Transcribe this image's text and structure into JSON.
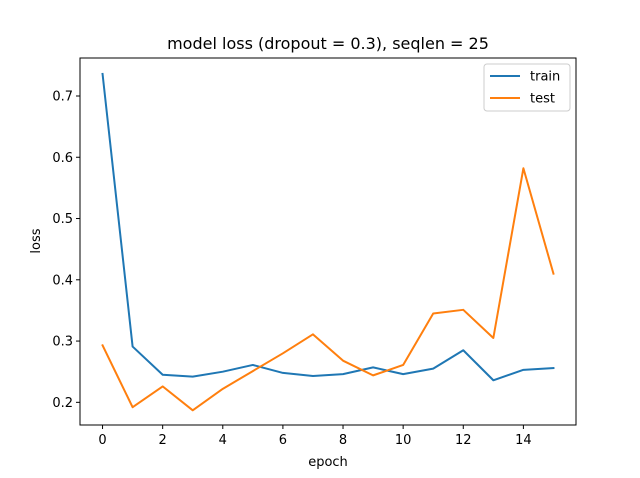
{
  "chart_data": {
    "type": "line",
    "title": "model loss (dropout = 0.3), seqlen = 25",
    "xlabel": "epoch",
    "ylabel": "loss",
    "xlim": [
      -0.75,
      15.75
    ],
    "ylim": [
      0.163,
      0.762
    ],
    "x": [
      0,
      1,
      2,
      3,
      4,
      5,
      6,
      7,
      8,
      9,
      10,
      11,
      12,
      13,
      14,
      15
    ],
    "xticks": [
      0,
      2,
      4,
      6,
      8,
      10,
      12,
      14
    ],
    "yticks": [
      0.2,
      0.3,
      0.4,
      0.5,
      0.6,
      0.7
    ],
    "xtick_labels": [
      "0",
      "2",
      "4",
      "6",
      "8",
      "10",
      "12",
      "14"
    ],
    "ytick_labels": [
      "0.2",
      "0.3",
      "0.4",
      "0.5",
      "0.6",
      "0.7"
    ],
    "grid": false,
    "legend_position": "top-right",
    "series": [
      {
        "name": "train",
        "color": "#1f77b4",
        "values": [
          0.736,
          0.291,
          0.245,
          0.242,
          0.25,
          0.261,
          0.248,
          0.243,
          0.246,
          0.257,
          0.246,
          0.255,
          0.285,
          0.236,
          0.253,
          0.256
        ]
      },
      {
        "name": "test",
        "color": "#ff7f0e",
        "values": [
          0.293,
          0.192,
          0.226,
          0.187,
          0.222,
          0.251,
          0.28,
          0.311,
          0.268,
          0.244,
          0.261,
          0.345,
          0.351,
          0.305,
          0.582,
          0.41
        ]
      }
    ]
  }
}
